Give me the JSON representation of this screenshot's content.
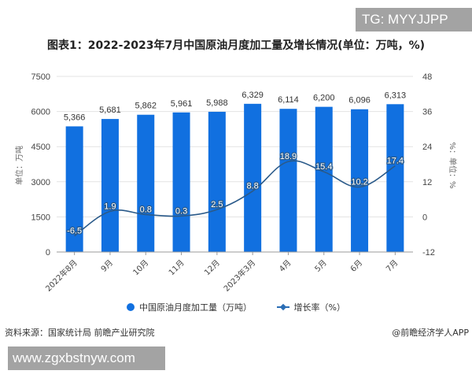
{
  "overlays": {
    "top_badge": "TG: MYYJJPP",
    "bottom_badge": "www.zgxbstnyw.com"
  },
  "header": {
    "title": "图表1：2022-2023年7月中国原油月度加工量及增长情况(单位：万吨，%)"
  },
  "footer": {
    "source": "资料来源：国家统计局 前瞻产业研究院",
    "credit": "@前瞻经济学人APP"
  },
  "legend": {
    "bar_label": "中国原油月度加工量（万吨）",
    "line_label": "增长率（%）"
  },
  "colors": {
    "bar": "#1170e0",
    "line": "#2a5a8a",
    "grid": "#e3e3e3",
    "axis_text": "#444444"
  },
  "chart_data": {
    "type": "bar+line",
    "title": "图表1：2022-2023年7月中国原油月度加工量及增长情况(单位：万吨，%)",
    "categories": [
      "2022年8月",
      "9月",
      "10月",
      "11月",
      "12月",
      "2023年3月",
      "4月",
      "5月",
      "6月",
      "7月"
    ],
    "series": [
      {
        "name": "中国原油月度加工量（万吨）",
        "type": "bar",
        "axis": "left",
        "values": [
          5366,
          5681,
          5862,
          5961,
          5988,
          6329,
          6114,
          6200,
          6096,
          6313
        ],
        "labels": [
          "5,366",
          "5,681",
          "5,862",
          "5,961",
          "5,988",
          "6,329",
          "6,114",
          "6,200",
          "6,096",
          "6,313"
        ]
      },
      {
        "name": "增长率（%）",
        "type": "line",
        "axis": "right",
        "values": [
          -6.5,
          1.9,
          0.8,
          0.3,
          2.5,
          8.8,
          18.9,
          15.4,
          10.2,
          17.4
        ],
        "labels": [
          "-6.5",
          "1.9",
          "0.8",
          "0.3",
          "2.5",
          "8.8",
          "18.9",
          "15.4",
          "10.2",
          "17.4"
        ]
      }
    ],
    "ylabel": "单位：万吨",
    "y2label": "单位：%",
    "ylim": [
      0,
      7500
    ],
    "yticks": [
      "7500",
      "6000",
      "4500",
      "3000",
      "1500",
      "0"
    ],
    "y2lim": [
      -12,
      48
    ],
    "y2ticks": [
      "48",
      "36",
      "24",
      "12",
      "0",
      "-12"
    ],
    "grid": true,
    "legend_position": "bottom"
  }
}
